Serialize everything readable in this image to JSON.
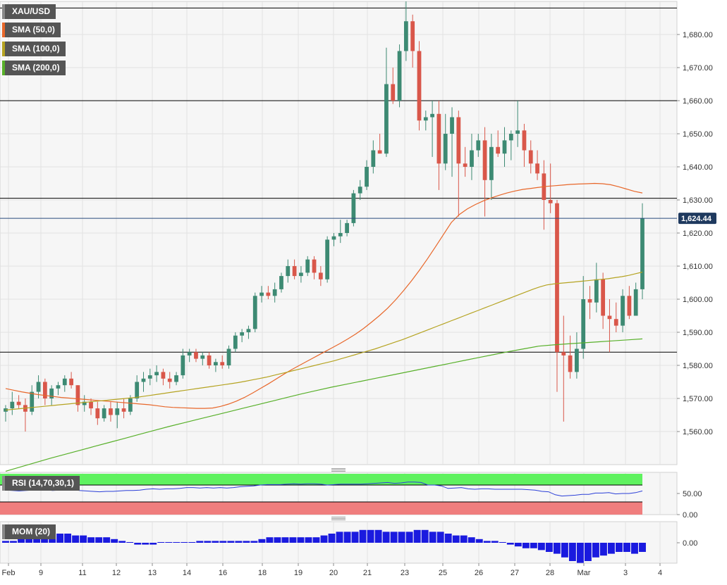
{
  "symbol_label": "XAU/USD",
  "indicators": [
    {
      "label": "SMA (50,0)",
      "color": "#e8672a"
    },
    {
      "label": "SMA (100,0)",
      "color": "#b5a321"
    },
    {
      "label": "SMA (200,0)",
      "color": "#58b02a"
    }
  ],
  "rsi_label": "RSI (14,70,30,1)",
  "mom_label": "MOM (20)",
  "colors": {
    "bull": "#3d8a73",
    "bear": "#d9574a",
    "rsi": "#2b3fd8",
    "mom": "#1a1adf",
    "price_tag": "#1f3a5f"
  },
  "chart_data": [
    {
      "type": "candlestick",
      "title": "XAU/USD",
      "ylim": [
        1550,
        1690
      ],
      "y_ticks": [
        "1,680.00",
        "1,670.00",
        "1,660.00",
        "1,650.00",
        "1,640.00",
        "1,630.00",
        "1,620.00",
        "1,610.00",
        "1,600.00",
        "1,590.00",
        "1,580.00",
        "1,570.00",
        "1,560.00"
      ],
      "x_ticks": [
        "Feb",
        "9",
        "11",
        "12",
        "13",
        "14",
        "16",
        "18",
        "19",
        "20",
        "21",
        "23",
        "25",
        "26",
        "27",
        "28",
        "Mar",
        "3",
        "4"
      ],
      "last_price": "1,624.44",
      "horizontal_lines": [
        1688,
        1660,
        1630.5,
        1584
      ],
      "candles": [
        [
          1566,
          1568,
          1563,
          1567
        ],
        [
          1567,
          1572,
          1565,
          1569
        ],
        [
          1569,
          1571,
          1567,
          1568
        ],
        [
          1568,
          1570,
          1560,
          1566
        ],
        [
          1566,
          1574,
          1565,
          1572
        ],
        [
          1572,
          1577,
          1570,
          1575
        ],
        [
          1575,
          1576,
          1568,
          1570
        ],
        [
          1570,
          1574,
          1568,
          1573
        ],
        [
          1573,
          1575,
          1571,
          1574
        ],
        [
          1574,
          1577,
          1572,
          1576
        ],
        [
          1576,
          1578,
          1573,
          1574
        ],
        [
          1574,
          1574,
          1566,
          1568
        ],
        [
          1568,
          1571,
          1566,
          1569
        ],
        [
          1569,
          1570,
          1565,
          1567
        ],
        [
          1567,
          1569,
          1562,
          1564
        ],
        [
          1564,
          1568,
          1563,
          1567
        ],
        [
          1567,
          1569,
          1563,
          1565
        ],
        [
          1565,
          1569,
          1561,
          1567
        ],
        [
          1567,
          1570,
          1564,
          1566
        ],
        [
          1566,
          1571,
          1565,
          1570
        ],
        [
          1570,
          1577,
          1569,
          1575
        ],
        [
          1575,
          1578,
          1572,
          1576
        ],
        [
          1576,
          1579,
          1574,
          1577
        ],
        [
          1577,
          1580,
          1575,
          1578
        ],
        [
          1578,
          1579,
          1574,
          1576
        ],
        [
          1576,
          1578,
          1573,
          1575
        ],
        [
          1575,
          1578,
          1574,
          1577
        ],
        [
          1577,
          1585,
          1576,
          1583
        ],
        [
          1583,
          1585,
          1581,
          1584
        ],
        [
          1584,
          1585,
          1581,
          1582
        ],
        [
          1582,
          1584,
          1580,
          1583
        ],
        [
          1583,
          1584,
          1579,
          1580
        ],
        [
          1580,
          1582,
          1578,
          1581
        ],
        [
          1581,
          1583,
          1579,
          1580
        ],
        [
          1580,
          1586,
          1579,
          1585
        ],
        [
          1585,
          1590,
          1584,
          1589
        ],
        [
          1589,
          1591,
          1587,
          1590
        ],
        [
          1590,
          1592,
          1588,
          1591
        ],
        [
          1591,
          1602,
          1590,
          1601
        ],
        [
          1601,
          1604,
          1599,
          1602
        ],
        [
          1602,
          1604,
          1600,
          1601
        ],
        [
          1601,
          1605,
          1599,
          1603
        ],
        [
          1603,
          1608,
          1602,
          1607
        ],
        [
          1607,
          1612,
          1605,
          1610
        ],
        [
          1610,
          1612,
          1606,
          1607
        ],
        [
          1607,
          1610,
          1605,
          1608
        ],
        [
          1608,
          1613,
          1607,
          1612
        ],
        [
          1612,
          1613,
          1606,
          1608
        ],
        [
          1608,
          1610,
          1604,
          1606
        ],
        [
          1606,
          1619,
          1605,
          1618
        ],
        [
          1618,
          1620,
          1616,
          1619
        ],
        [
          1619,
          1624,
          1617,
          1620
        ],
        [
          1620,
          1624,
          1619,
          1623
        ],
        [
          1623,
          1633,
          1622,
          1632
        ],
        [
          1632,
          1636,
          1630,
          1634
        ],
        [
          1634,
          1642,
          1633,
          1640
        ],
        [
          1640,
          1648,
          1638,
          1645
        ],
        [
          1645,
          1650,
          1644,
          1644
        ],
        [
          1644,
          1676,
          1643,
          1665
        ],
        [
          1665,
          1670,
          1659,
          1660
        ],
        [
          1660,
          1677,
          1658,
          1675
        ],
        [
          1675,
          1690,
          1672,
          1684
        ],
        [
          1684,
          1686,
          1670,
          1675
        ],
        [
          1675,
          1678,
          1651,
          1654
        ],
        [
          1654,
          1657,
          1651,
          1655
        ],
        [
          1655,
          1660,
          1643,
          1656
        ],
        [
          1656,
          1660,
          1633,
          1641
        ],
        [
          1641,
          1656,
          1639,
          1650
        ],
        [
          1650,
          1658,
          1637,
          1655
        ],
        [
          1655,
          1657,
          1625,
          1641
        ],
        [
          1641,
          1646,
          1637,
          1640
        ],
        [
          1640,
          1650,
          1636,
          1645
        ],
        [
          1645,
          1650,
          1643,
          1648
        ],
        [
          1648,
          1652,
          1625,
          1636
        ],
        [
          1636,
          1650,
          1630,
          1646
        ],
        [
          1646,
          1651,
          1643,
          1644
        ],
        [
          1644,
          1652,
          1640,
          1648
        ],
        [
          1648,
          1651,
          1642,
          1650
        ],
        [
          1650,
          1660,
          1646,
          1651
        ],
        [
          1651,
          1653,
          1640,
          1645
        ],
        [
          1645,
          1648,
          1638,
          1641
        ],
        [
          1641,
          1645,
          1636,
          1638
        ],
        [
          1638,
          1642,
          1621,
          1630
        ],
        [
          1630,
          1641,
          1626,
          1629
        ],
        [
          1629,
          1630,
          1572,
          1584
        ],
        [
          1584,
          1595,
          1563,
          1583
        ],
        [
          1583,
          1589,
          1576,
          1578
        ],
        [
          1578,
          1590,
          1576,
          1585
        ],
        [
          1585,
          1607,
          1582,
          1600
        ],
        [
          1600,
          1604,
          1594,
          1599
        ],
        [
          1599,
          1611,
          1596,
          1606
        ],
        [
          1606,
          1608,
          1591,
          1595
        ],
        [
          1595,
          1600,
          1584,
          1594
        ],
        [
          1594,
          1599,
          1590,
          1592
        ],
        [
          1592,
          1603,
          1590,
          1601
        ],
        [
          1601,
          1604,
          1594,
          1595
        ],
        [
          1595,
          1605,
          1595,
          1603
        ],
        [
          1603,
          1629,
          1600,
          1624.44
        ]
      ],
      "sma50": [
        1573,
        1572.5,
        1572,
        1571.6,
        1571.2,
        1570.9,
        1570.6,
        1570.3,
        1570.1,
        1569.9,
        1569.7,
        1569.5,
        1569.3,
        1569.1,
        1568.9,
        1568.7,
        1568.5,
        1568.3,
        1568.1,
        1567.8,
        1567.5,
        1567.3,
        1567.2,
        1567.1,
        1567,
        1567,
        1567.1,
        1567.6,
        1568.3,
        1569.2,
        1570.3,
        1571.6,
        1573,
        1574.4,
        1575.9,
        1577.4,
        1578.8,
        1580.1,
        1581.4,
        1582.7,
        1584,
        1585.3,
        1586.6,
        1588,
        1589.5,
        1591.2,
        1593.1,
        1595.1,
        1597.3,
        1599.8,
        1602.6,
        1605.6,
        1608.8,
        1612.2,
        1615.8,
        1619.5,
        1623.2,
        1625.6,
        1627.3,
        1628.6,
        1629.7,
        1630.6,
        1631.4,
        1632.1,
        1632.7,
        1633.2,
        1633.5,
        1633.8,
        1634.1,
        1634.3,
        1634.5,
        1634.7,
        1634.8,
        1634.9,
        1635,
        1634.9,
        1634.6,
        1634,
        1633.3,
        1632.6,
        1632.1
      ],
      "sma100": [
        1566.5,
        1566.7,
        1566.9,
        1567.1,
        1567.3,
        1567.5,
        1567.7,
        1567.9,
        1568.1,
        1568.3,
        1568.5,
        1568.7,
        1568.9,
        1569.1,
        1569.3,
        1569.5,
        1569.7,
        1569.9,
        1570.1,
        1570.3,
        1570.6,
        1570.9,
        1571.2,
        1571.5,
        1571.8,
        1572.1,
        1572.4,
        1572.7,
        1573,
        1573.3,
        1573.6,
        1573.9,
        1574.2,
        1574.5,
        1574.8,
        1575.2,
        1575.6,
        1576,
        1576.4,
        1576.9,
        1577.4,
        1577.9,
        1578.4,
        1578.9,
        1579.4,
        1579.9,
        1580.4,
        1580.9,
        1581.4,
        1582,
        1582.6,
        1583.2,
        1583.8,
        1584.4,
        1585,
        1585.7,
        1586.4,
        1587.1,
        1587.8,
        1588.6,
        1589.4,
        1590.2,
        1591,
        1591.8,
        1592.6,
        1593.4,
        1594.2,
        1595,
        1595.8,
        1596.6,
        1597.4,
        1598.2,
        1599,
        1599.8,
        1600.6,
        1601.4,
        1602.2,
        1603,
        1603.7,
        1604.3,
        1604.6,
        1604.8,
        1605,
        1605.2,
        1605.4,
        1605.6,
        1605.8,
        1606,
        1606.2,
        1606.5,
        1606.8,
        1607.2,
        1607.7,
        1608.2
      ],
      "sma200": [
        1548,
        1549.3,
        1550.6,
        1551.9,
        1553.1,
        1554.3,
        1555.5,
        1556.7,
        1557.9,
        1559.1,
        1560.3,
        1561.5,
        1562.6,
        1563.7,
        1564.8,
        1565.9,
        1567,
        1568.1,
        1569.2,
        1570.3,
        1571.4,
        1572.4,
        1573.4,
        1574.3,
        1575.2,
        1576.1,
        1577,
        1577.9,
        1578.8,
        1579.7,
        1580.6,
        1581.5,
        1582.4,
        1583.3,
        1584.2,
        1585,
        1585.8,
        1586.2,
        1586.5,
        1586.8,
        1587.1,
        1587.4,
        1587.7,
        1588
      ],
      "sma200_first_index": 0
    },
    {
      "type": "line",
      "title": "RSI (14,70,30,1)",
      "ylim": [
        0,
        100
      ],
      "y_ticks": [
        "50.00",
        "0.00"
      ],
      "values": [
        58,
        57,
        56,
        57,
        58,
        59,
        59,
        57,
        58,
        59,
        60,
        57,
        56,
        55,
        54,
        55,
        55,
        56,
        57,
        57,
        58,
        60,
        61,
        60,
        61,
        61,
        62,
        64,
        64,
        63,
        64,
        63,
        64,
        63,
        64,
        66,
        67,
        68,
        70,
        71,
        71,
        71,
        72,
        73,
        72,
        73,
        73,
        72,
        70,
        71,
        72,
        72,
        72,
        72,
        73,
        74,
        75,
        76,
        74,
        75,
        77,
        77,
        76,
        70,
        70,
        68,
        62,
        63,
        64,
        61,
        60,
        61,
        61,
        60,
        60,
        60,
        60,
        60,
        59,
        58,
        55,
        54,
        47,
        44,
        45,
        46,
        48,
        48,
        51,
        51,
        52,
        49,
        50,
        50,
        52,
        56
      ]
    },
    {
      "type": "bar",
      "title": "MOM (20)",
      "y_ticks": [
        "0.00"
      ],
      "values": [
        1,
        1,
        3,
        3,
        3,
        3,
        5,
        5,
        5,
        4,
        4,
        3,
        3,
        3,
        2,
        1,
        0,
        -1,
        -1,
        -1,
        0,
        0,
        0,
        0,
        0,
        1,
        1,
        1,
        1,
        1,
        1,
        1,
        1,
        2,
        3,
        3,
        3,
        3,
        3,
        3,
        3,
        4,
        5,
        6,
        6,
        6,
        7,
        7,
        7,
        6,
        6,
        6,
        6,
        7,
        7,
        6,
        6,
        5,
        4,
        4,
        3,
        2,
        1,
        1,
        0,
        -1,
        -2,
        -3,
        -3,
        -4,
        -5,
        -6,
        -8,
        -10,
        -11,
        -10,
        -8,
        -7,
        -6,
        -5,
        -5,
        -6,
        -5
      ]
    }
  ]
}
